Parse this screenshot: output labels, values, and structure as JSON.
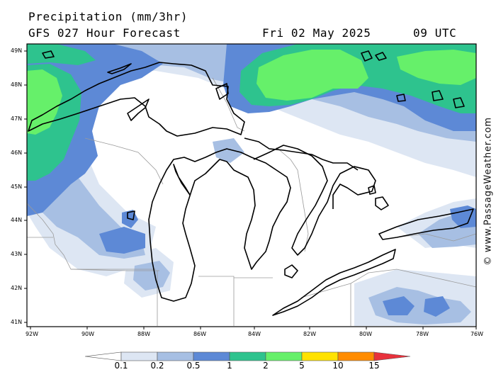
{
  "header": {
    "title": "Precipitation (mm/3hr)",
    "subtitle": "GFS 027 Hour Forecast",
    "date": "Fri 02 May 2025",
    "time": "09 UTC"
  },
  "map": {
    "region": "Great Lakes",
    "lat_ticks": [
      "49N",
      "48N",
      "47N",
      "46N",
      "45N",
      "44N",
      "43N",
      "42N",
      "41N"
    ],
    "lon_ticks": [
      "92W",
      "90W",
      "88W",
      "86W",
      "84W",
      "82W",
      "80W",
      "78W",
      "76W"
    ]
  },
  "credit": "© www.PassageWeather.com",
  "legend": {
    "ticks": [
      "0.1",
      "0.2",
      "0.5",
      "1",
      "2",
      "5",
      "10",
      "15"
    ],
    "colors": [
      "#ffffff",
      "#dde6f3",
      "#a7bfe3",
      "#5d89d6",
      "#2ec38e",
      "#66f06a",
      "#ffe200",
      "#ff8c00",
      "#e8323c"
    ]
  }
}
